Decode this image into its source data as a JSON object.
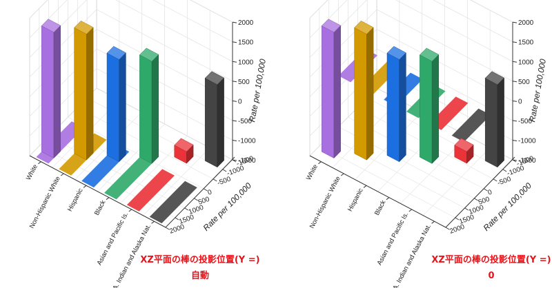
{
  "chart_data": [
    {
      "type": "bar",
      "panel": "left",
      "projection_label": "XZ平面の棒の投影位置(Y =)",
      "projection_value": "自動",
      "categories": [
        "White",
        "Non-Hispanic White",
        "Hispanic",
        "Black",
        "Asian and Pacific Is.",
        "A. Indian and Alaska Nat."
      ],
      "values": [
        1700,
        1700,
        1100,
        1100,
        -1200,
        600
      ],
      "colors": [
        "#a86fe0",
        "#d39a00",
        "#1c6fe0",
        "#2fa96a",
        "#ea3238",
        "#444444"
      ],
      "zlabel": "Rate per 100,000",
      "ylabel": "Rate per 100,000",
      "zlim": [
        -1500,
        2000
      ],
      "z_ticks": [
        "2000",
        "1500",
        "1000",
        "500",
        "0",
        "-500",
        "-1000",
        "-1500"
      ],
      "y_ticks": [
        "-1500",
        "-1000",
        "-500",
        "0",
        "500",
        "1000",
        "1500",
        "2000"
      ],
      "grid": true
    },
    {
      "type": "bar",
      "panel": "right",
      "projection_label": "XZ平面の棒の投影位置(Y =)",
      "projection_value": "0",
      "categories": [
        "White",
        "Non-Hispanic White",
        "Hispanic",
        "Black",
        "Asian and Pacific Is.",
        "A. Indian and Alaska Nat."
      ],
      "values": [
        1700,
        1700,
        1100,
        1100,
        -1200,
        600
      ],
      "colors": [
        "#a86fe0",
        "#d39a00",
        "#1c6fe0",
        "#2fa96a",
        "#ea3238",
        "#444444"
      ],
      "zlabel": "Rate per 100,000",
      "ylabel": "Rate per 100,000",
      "zlim": [
        -1500,
        2000
      ],
      "z_ticks": [
        "2000",
        "1500",
        "1000",
        "500",
        "0",
        "-500",
        "-1000",
        "-1500"
      ],
      "y_ticks": [
        "-1500",
        "-1000",
        "-500",
        "0",
        "500",
        "1000",
        "1500",
        "2000"
      ],
      "grid": true
    }
  ]
}
